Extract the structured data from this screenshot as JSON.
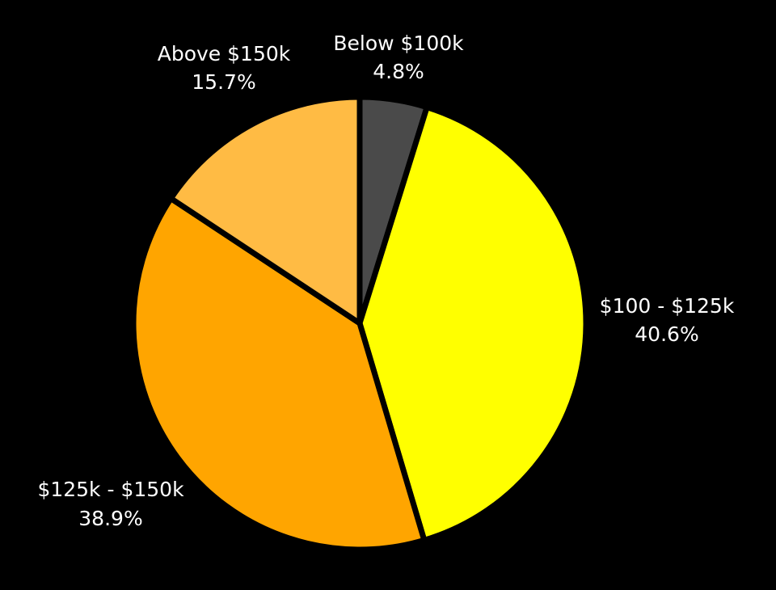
{
  "chart_data": {
    "type": "pie",
    "title": "",
    "slices": [
      {
        "label": "Below $100k",
        "value": 4.8,
        "display": "4.8%",
        "color": "#4a4a4a"
      },
      {
        "label": "$100 - $125k",
        "value": 40.6,
        "display": "40.6%",
        "color": "#ffff00"
      },
      {
        "label": "$125k - $150k",
        "value": 38.9,
        "display": "38.9%",
        "color": "#ffa500"
      },
      {
        "label": "Above $150k",
        "value": 15.7,
        "display": "15.7%",
        "color": "#ffbb44"
      }
    ],
    "start_angle": "12 o'clock",
    "direction": "clockwise",
    "legend": "none",
    "slice_border_color": "#000000",
    "background": "#000000"
  }
}
